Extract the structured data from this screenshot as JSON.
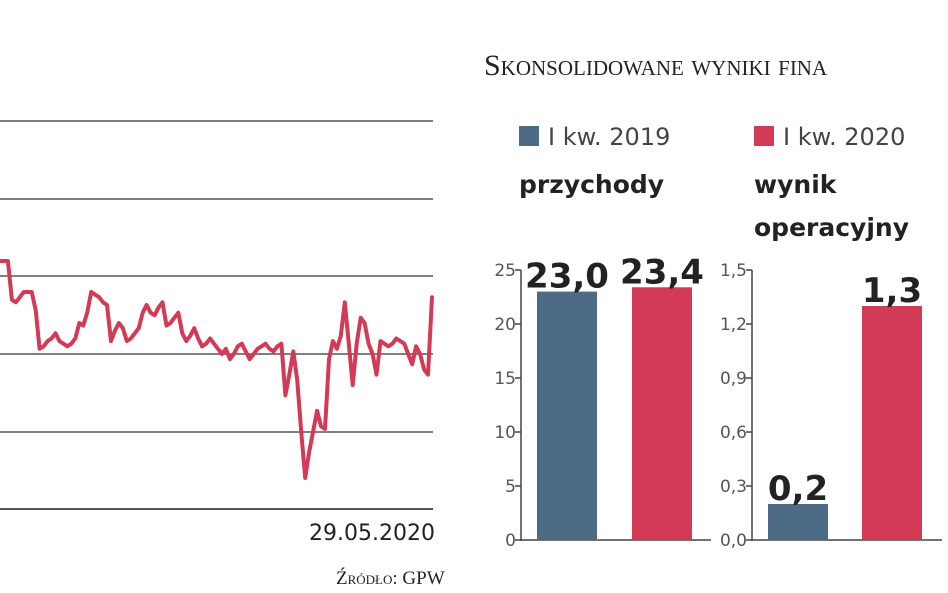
{
  "chart_data": [
    {
      "type": "line",
      "end_date_label": "29.05.2020",
      "line_color": "#d23a55",
      "grid": true,
      "series": [
        {
          "values": [
            88.0,
            88.0,
            88.0,
            80.5,
            80.0,
            81.0,
            82.0,
            82.0,
            82.0,
            78.5,
            71.0,
            71.5,
            72.5,
            73.0,
            74.0,
            72.5,
            72.0,
            71.5,
            72.0,
            73.0,
            76.0,
            75.5,
            78.0,
            82.0,
            81.5,
            81.0,
            80.0,
            79.5,
            72.5,
            74.5,
            76.0,
            75.0,
            72.5,
            73.0,
            74.0,
            75.0,
            78.0,
            79.5,
            78.0,
            77.5,
            79.0,
            80.0,
            75.5,
            76.0,
            77.0,
            78.0,
            74.0,
            72.5,
            73.5,
            75.0,
            73.0,
            71.5,
            72.0,
            73.0,
            72.0,
            71.0,
            70.0,
            71.0,
            69.0,
            70.0,
            71.5,
            72.0,
            70.5,
            69.0,
            70.0,
            71.0,
            71.5,
            72.0,
            71.0,
            70.5,
            71.5,
            72.0,
            62.0,
            66.0,
            70.5,
            65.0,
            55.0,
            46.0,
            51.0,
            55.0,
            59.0,
            56.0,
            55.5,
            69.0,
            72.5,
            71.0,
            73.5,
            80.0,
            72.0,
            64.0,
            72.0,
            77.0,
            76.0,
            72.0,
            70.0,
            66.0,
            72.5,
            72.0,
            71.5,
            72.0,
            73.0,
            72.5,
            72.0,
            70.0,
            68.0,
            71.5,
            70.0,
            67.0,
            66.0,
            81.0
          ]
        }
      ]
    },
    {
      "type": "bar",
      "categories": [
        "przychody"
      ],
      "series": [
        {
          "name": "I kw. 2019",
          "values": [
            23.0
          ],
          "color": "#4d6b84"
        },
        {
          "name": "I kw. 2020",
          "values": [
            23.4
          ],
          "color": "#d23a55"
        }
      ],
      "data_labels": [
        "23,0",
        "23,4"
      ],
      "ylim": [
        0,
        25
      ],
      "yticks": [
        "0",
        "5",
        "10",
        "15",
        "20",
        "25"
      ]
    },
    {
      "type": "bar",
      "categories": [
        "wynik operacyjny"
      ],
      "series": [
        {
          "name": "I kw. 2019",
          "values": [
            0.2
          ],
          "color": "#4d6b84"
        },
        {
          "name": "I kw. 2020",
          "values": [
            1.3
          ],
          "color": "#d23a55"
        }
      ],
      "data_labels": [
        "0,2",
        "1,3"
      ],
      "ylim": [
        0,
        1.5
      ],
      "yticks": [
        "0,0",
        "0,3",
        "0,6",
        "0,9",
        "1,2",
        "1,5"
      ]
    }
  ],
  "header": {
    "title": "Skonsolidowane wyniki fina"
  },
  "legend": [
    {
      "label": "I kw. 2019",
      "color": "#4d6b84"
    },
    {
      "label": "I kw. 2020",
      "color": "#d23a55"
    }
  ],
  "labels": {
    "metric_revenue": "przychody",
    "metric_operating_line1": "wynik",
    "metric_operating_line2": "operacyjny"
  },
  "footer": {
    "source": "Źródło: GPW"
  }
}
